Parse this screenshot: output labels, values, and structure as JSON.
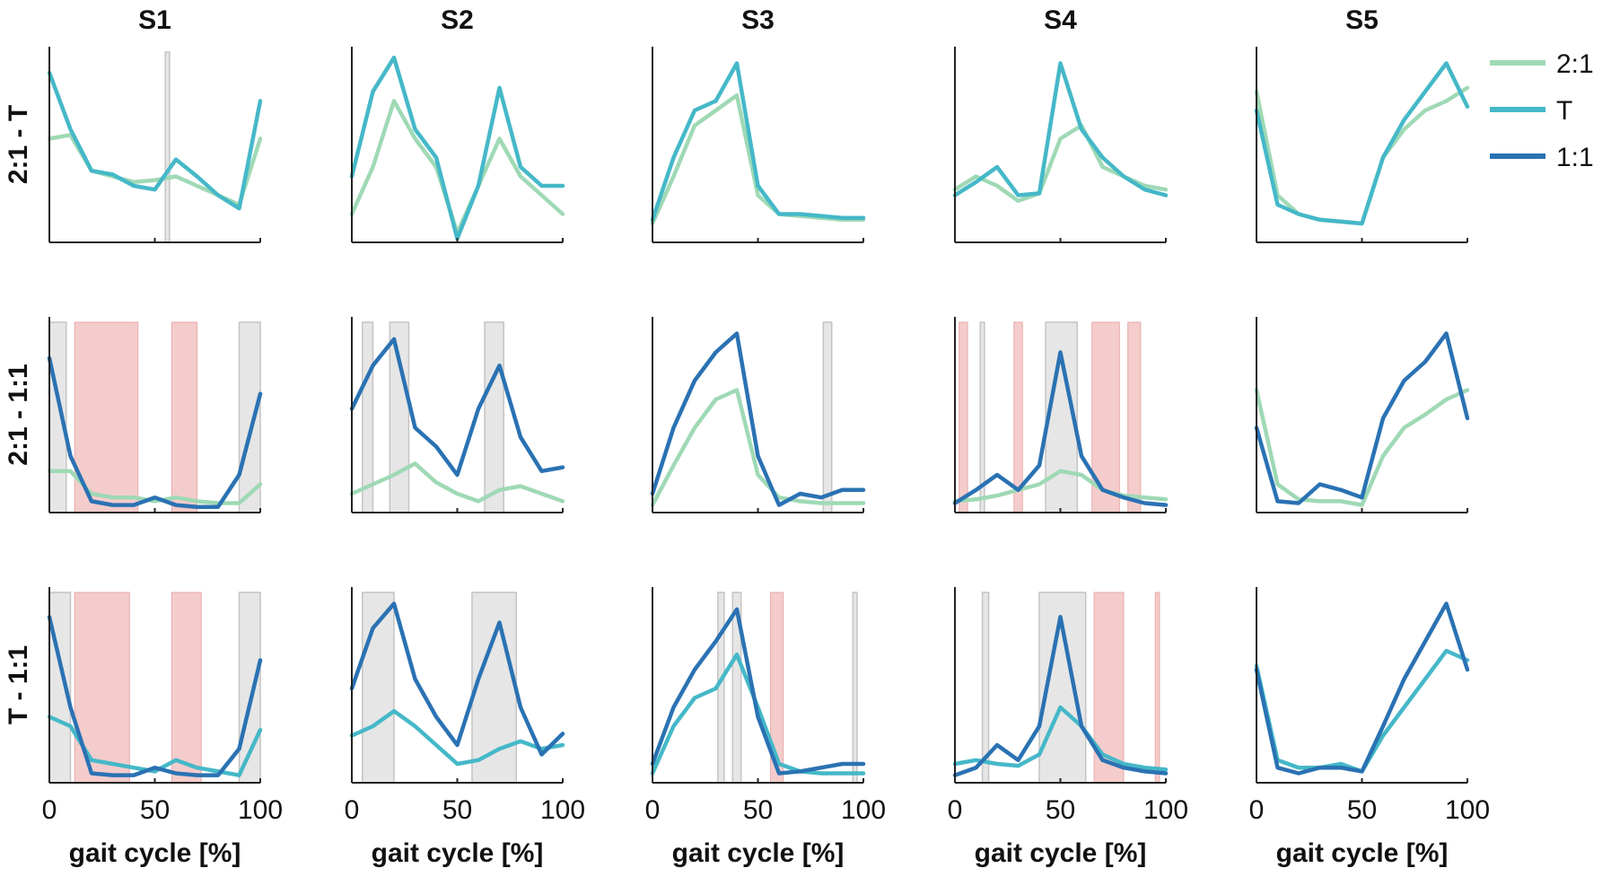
{
  "chart_data": {
    "type": "line",
    "title": "",
    "xlabel": "gait cycle [%]",
    "xlim": [
      0,
      100
    ],
    "xticks": [
      "0",
      "50",
      "100"
    ],
    "ylabel": "",
    "columns": [
      "S1",
      "S2",
      "S3",
      "S4",
      "S5"
    ],
    "rows": [
      "2:1 - T",
      "2:1 - 1:1",
      "T - 1:1"
    ],
    "legend": [
      {
        "name": "2:1",
        "color": "#9fd9b5"
      },
      {
        "name": "T",
        "color": "#45b8c8"
      },
      {
        "name": "1:1",
        "color": "#2a72b3"
      }
    ],
    "x": [
      0,
      10,
      20,
      30,
      40,
      50,
      60,
      70,
      80,
      90,
      100
    ],
    "panels": [
      [
        {
          "series": [
            [
              "2:1",
              [
                0.55,
                0.57,
                0.38,
                0.35,
                0.32,
                0.33,
                0.35,
                0.3,
                0.25,
                0.2,
                0.55
              ]
            ],
            [
              "T",
              [
                0.9,
                0.6,
                0.38,
                0.36,
                0.3,
                0.28,
                0.44,
                0.35,
                0.25,
                0.18,
                0.75
              ]
            ]
          ],
          "gray": [
            [
              55,
              57
            ]
          ],
          "red": []
        },
        {
          "series": [
            [
              "2:1",
              [
                0.15,
                0.4,
                0.75,
                0.55,
                0.4,
                0.05,
                0.3,
                0.55,
                0.35,
                0.25,
                0.15
              ]
            ],
            [
              "T",
              [
                0.35,
                0.8,
                0.98,
                0.6,
                0.45,
                0.02,
                0.3,
                0.82,
                0.4,
                0.3,
                0.3
              ]
            ]
          ],
          "gray": [],
          "red": []
        },
        {
          "series": [
            [
              "2:1",
              [
                0.1,
                0.35,
                0.62,
                0.7,
                0.78,
                0.25,
                0.15,
                0.14,
                0.13,
                0.12,
                0.12
              ]
            ],
            [
              "T",
              [
                0.12,
                0.45,
                0.7,
                0.75,
                0.95,
                0.3,
                0.15,
                0.15,
                0.14,
                0.13,
                0.13
              ]
            ]
          ],
          "gray": [],
          "red": []
        },
        {
          "series": [
            [
              "2:1",
              [
                0.28,
                0.35,
                0.3,
                0.22,
                0.26,
                0.55,
                0.62,
                0.4,
                0.35,
                0.3,
                0.28
              ]
            ],
            [
              "T",
              [
                0.25,
                0.32,
                0.4,
                0.25,
                0.26,
                0.95,
                0.6,
                0.45,
                0.35,
                0.28,
                0.25
              ]
            ]
          ],
          "gray": [],
          "red": []
        },
        {
          "series": [
            [
              "2:1",
              [
                0.8,
                0.25,
                0.15,
                0.12,
                0.11,
                0.1,
                0.45,
                0.6,
                0.7,
                0.75,
                0.82
              ]
            ],
            [
              "T",
              [
                0.7,
                0.2,
                0.15,
                0.12,
                0.11,
                0.1,
                0.45,
                0.65,
                0.8,
                0.95,
                0.72
              ]
            ]
          ],
          "gray": [],
          "red": []
        }
      ],
      [
        {
          "series": [
            [
              "2:1",
              [
                0.22,
                0.22,
                0.1,
                0.08,
                0.08,
                0.06,
                0.08,
                0.06,
                0.05,
                0.05,
                0.15
              ]
            ],
            [
              "1:1",
              [
                0.82,
                0.3,
                0.06,
                0.04,
                0.04,
                0.08,
                0.04,
                0.03,
                0.03,
                0.2,
                0.63
              ]
            ]
          ],
          "gray": [
            [
              0,
              8
            ],
            [
              90,
              100
            ]
          ],
          "red": [
            [
              12,
              42
            ],
            [
              58,
              70
            ]
          ]
        },
        {
          "series": [
            [
              "2:1",
              [
                0.1,
                0.15,
                0.2,
                0.26,
                0.16,
                0.1,
                0.06,
                0.12,
                0.14,
                0.1,
                0.06
              ]
            ],
            [
              "1:1",
              [
                0.55,
                0.78,
                0.92,
                0.45,
                0.35,
                0.2,
                0.55,
                0.78,
                0.4,
                0.22,
                0.24
              ]
            ]
          ],
          "gray": [
            [
              5,
              10
            ],
            [
              18,
              27
            ],
            [
              63,
              72
            ]
          ],
          "red": []
        },
        {
          "series": [
            [
              "2:1",
              [
                0.04,
                0.25,
                0.45,
                0.6,
                0.65,
                0.2,
                0.08,
                0.06,
                0.05,
                0.05,
                0.05
              ]
            ],
            [
              "1:1",
              [
                0.1,
                0.45,
                0.7,
                0.85,
                0.95,
                0.3,
                0.04,
                0.1,
                0.08,
                0.12,
                0.12
              ]
            ]
          ],
          "gray": [
            [
              81,
              85
            ]
          ],
          "red": []
        },
        {
          "series": [
            [
              "2:1",
              [
                0.06,
                0.07,
                0.09,
                0.12,
                0.15,
                0.22,
                0.2,
                0.12,
                0.09,
                0.08,
                0.07
              ]
            ],
            [
              "1:1",
              [
                0.05,
                0.12,
                0.2,
                0.12,
                0.25,
                0.85,
                0.3,
                0.12,
                0.08,
                0.05,
                0.04
              ]
            ]
          ],
          "gray": [
            [
              12,
              14
            ],
            [
              43,
              58
            ]
          ],
          "red": [
            [
              2,
              6
            ],
            [
              28,
              32
            ],
            [
              65,
              78
            ],
            [
              82,
              88
            ]
          ]
        },
        {
          "series": [
            [
              "2:1",
              [
                0.65,
                0.15,
                0.07,
                0.06,
                0.06,
                0.04,
                0.3,
                0.45,
                0.52,
                0.6,
                0.65
              ]
            ],
            [
              "1:1",
              [
                0.45,
                0.06,
                0.05,
                0.15,
                0.12,
                0.08,
                0.5,
                0.7,
                0.8,
                0.95,
                0.5
              ]
            ]
          ],
          "gray": [],
          "red": []
        }
      ],
      [
        {
          "series": [
            [
              "T",
              [
                0.35,
                0.3,
                0.12,
                0.1,
                0.08,
                0.06,
                0.12,
                0.08,
                0.06,
                0.04,
                0.28
              ]
            ],
            [
              "1:1",
              [
                0.88,
                0.4,
                0.05,
                0.04,
                0.04,
                0.08,
                0.05,
                0.04,
                0.04,
                0.18,
                0.65
              ]
            ]
          ],
          "gray": [
            [
              0,
              10
            ],
            [
              90,
              100
            ]
          ],
          "red": [
            [
              12,
              38
            ],
            [
              58,
              72
            ]
          ]
        },
        {
          "series": [
            [
              "T",
              [
                0.25,
                0.3,
                0.38,
                0.3,
                0.2,
                0.1,
                0.12,
                0.18,
                0.22,
                0.18,
                0.2
              ]
            ],
            [
              "1:1",
              [
                0.5,
                0.82,
                0.95,
                0.55,
                0.35,
                0.2,
                0.55,
                0.85,
                0.4,
                0.15,
                0.26
              ]
            ]
          ],
          "gray": [
            [
              5,
              20
            ],
            [
              57,
              78
            ]
          ],
          "red": []
        },
        {
          "series": [
            [
              "T",
              [
                0.05,
                0.3,
                0.45,
                0.5,
                0.68,
                0.4,
                0.1,
                0.06,
                0.05,
                0.05,
                0.05
              ]
            ],
            [
              "1:1",
              [
                0.1,
                0.4,
                0.6,
                0.75,
                0.92,
                0.35,
                0.05,
                0.06,
                0.08,
                0.1,
                0.1
              ]
            ]
          ],
          "gray": [
            [
              31,
              34
            ],
            [
              38,
              42
            ],
            [
              95,
              97
            ]
          ],
          "red": [
            [
              56,
              62
            ]
          ]
        },
        {
          "series": [
            [
              "T",
              [
                0.1,
                0.12,
                0.1,
                0.09,
                0.15,
                0.4,
                0.3,
                0.15,
                0.1,
                0.08,
                0.07
              ]
            ],
            [
              "1:1",
              [
                0.04,
                0.08,
                0.2,
                0.12,
                0.3,
                0.88,
                0.3,
                0.12,
                0.08,
                0.06,
                0.05
              ]
            ]
          ],
          "gray": [
            [
              13,
              16
            ],
            [
              40,
              62
            ]
          ],
          "red": [
            [
              66,
              80
            ],
            [
              95,
              97
            ]
          ]
        },
        {
          "series": [
            [
              "T",
              [
                0.62,
                0.12,
                0.08,
                0.08,
                0.1,
                0.06,
                0.25,
                0.4,
                0.55,
                0.7,
                0.65
              ]
            ],
            [
              "1:1",
              [
                0.6,
                0.08,
                0.05,
                0.08,
                0.08,
                0.06,
                0.3,
                0.55,
                0.75,
                0.95,
                0.6
              ]
            ]
          ],
          "gray": [],
          "red": []
        }
      ]
    ]
  }
}
